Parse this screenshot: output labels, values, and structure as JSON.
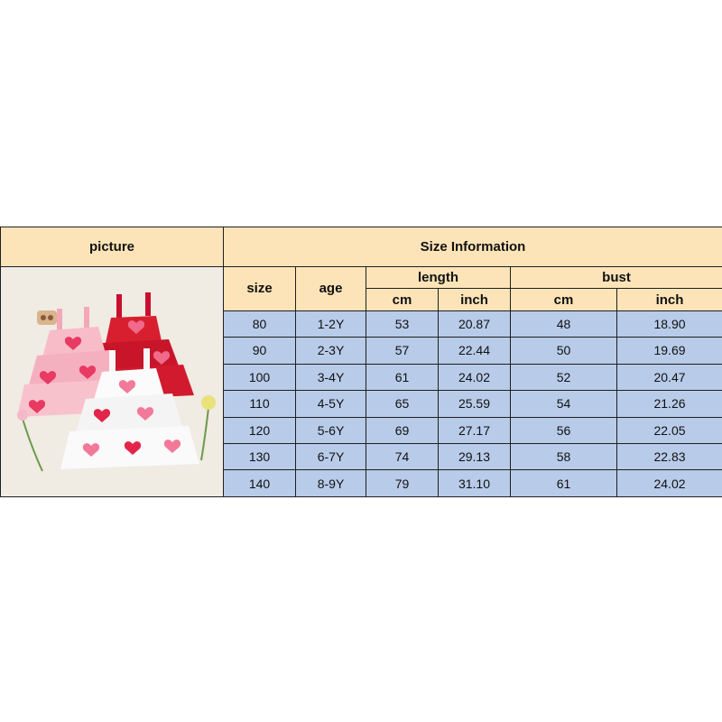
{
  "table": {
    "picture_header": "picture",
    "info_header": "Size Information",
    "size_header": "size",
    "age_header": "age",
    "length_header": "length",
    "bust_header": "bust",
    "length_units": [
      "cm",
      "inch"
    ],
    "bust_units": [
      "cm",
      "inch"
    ],
    "rows": [
      {
        "size": "80",
        "age": "1-2Y",
        "length_cm": "53",
        "length_inch": "20.87",
        "bust_cm": "48",
        "bust_inch": "18.90"
      },
      {
        "size": "90",
        "age": "2-3Y",
        "length_cm": "57",
        "length_inch": "22.44",
        "bust_cm": "50",
        "bust_inch": "19.69"
      },
      {
        "size": "100",
        "age": "3-4Y",
        "length_cm": "61",
        "length_inch": "24.02",
        "bust_cm": "52",
        "bust_inch": "20.47"
      },
      {
        "size": "110",
        "age": "4-5Y",
        "length_cm": "65",
        "length_inch": "25.59",
        "bust_cm": "54",
        "bust_inch": "21.26"
      },
      {
        "size": "120",
        "age": "5-6Y",
        "length_cm": "69",
        "length_inch": "27.17",
        "bust_cm": "56",
        "bust_inch": "22.05"
      },
      {
        "size": "130",
        "age": "6-7Y",
        "length_cm": "74",
        "length_inch": "29.13",
        "bust_cm": "58",
        "bust_inch": "22.83"
      },
      {
        "size": "140",
        "age": "8-9Y",
        "length_cm": "79",
        "length_inch": "31.10",
        "bust_cm": "61",
        "bust_inch": "24.02"
      }
    ]
  },
  "colors": {
    "header_bg": "#fde4b8",
    "cell_bg": "#b8cbe9",
    "border": "#1f1f1f"
  }
}
